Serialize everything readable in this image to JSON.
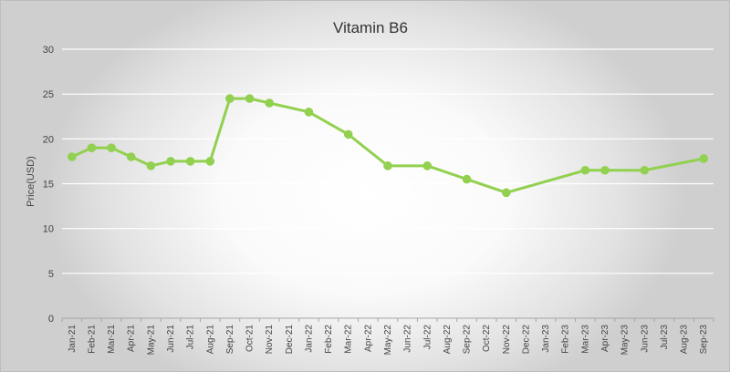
{
  "chart_data": {
    "type": "line",
    "title": "Vitamin B6",
    "xlabel": "",
    "ylabel": "Price(USD)",
    "ylim": [
      0,
      30
    ],
    "yticks": [
      0,
      5,
      10,
      15,
      20,
      25,
      30
    ],
    "grid": true,
    "line_color": "#92d050",
    "categories": [
      "Jan-21",
      "Feb-21",
      "Mar-21",
      "Apr-21",
      "May-21",
      "Jun-21",
      "Jul-21",
      "Aug-21",
      "Sep-21",
      "Oct-21",
      "Nov-21",
      "Dec-21",
      "Jan-22",
      "Feb-22",
      "Mar-22",
      "Apr-22",
      "May-22",
      "Jun-22",
      "Jul-22",
      "Aug-22",
      "Sep-22",
      "Oct-22",
      "Nov-22",
      "Dec-22",
      "Jan-23",
      "Feb-23",
      "Mar-23",
      "Apr-23",
      "May-23",
      "Jun-23",
      "Jul-23",
      "Aug-23",
      "Sep-23"
    ],
    "series": [
      {
        "name": "Vitamin B6",
        "points": [
          {
            "x": "Jan-21",
            "y": 18
          },
          {
            "x": "Feb-21",
            "y": 19
          },
          {
            "x": "Mar-21",
            "y": 19
          },
          {
            "x": "Apr-21",
            "y": 18
          },
          {
            "x": "May-21",
            "y": 17
          },
          {
            "x": "Jun-21",
            "y": 17.5
          },
          {
            "x": "Jul-21",
            "y": 17.5
          },
          {
            "x": "Aug-21",
            "y": 17.5
          },
          {
            "x": "Sep-21",
            "y": 24.5
          },
          {
            "x": "Oct-21",
            "y": 24.5
          },
          {
            "x": "Nov-21",
            "y": 24
          },
          {
            "x": "Jan-22",
            "y": 23
          },
          {
            "x": "Mar-22",
            "y": 20.5
          },
          {
            "x": "May-22",
            "y": 17
          },
          {
            "x": "Jul-22",
            "y": 17
          },
          {
            "x": "Sep-22",
            "y": 15.5
          },
          {
            "x": "Nov-22",
            "y": 14
          },
          {
            "x": "Mar-23",
            "y": 16.5
          },
          {
            "x": "Apr-23",
            "y": 16.5
          },
          {
            "x": "Jun-23",
            "y": 16.5
          },
          {
            "x": "Sep-23",
            "y": 17.8
          }
        ]
      }
    ]
  }
}
